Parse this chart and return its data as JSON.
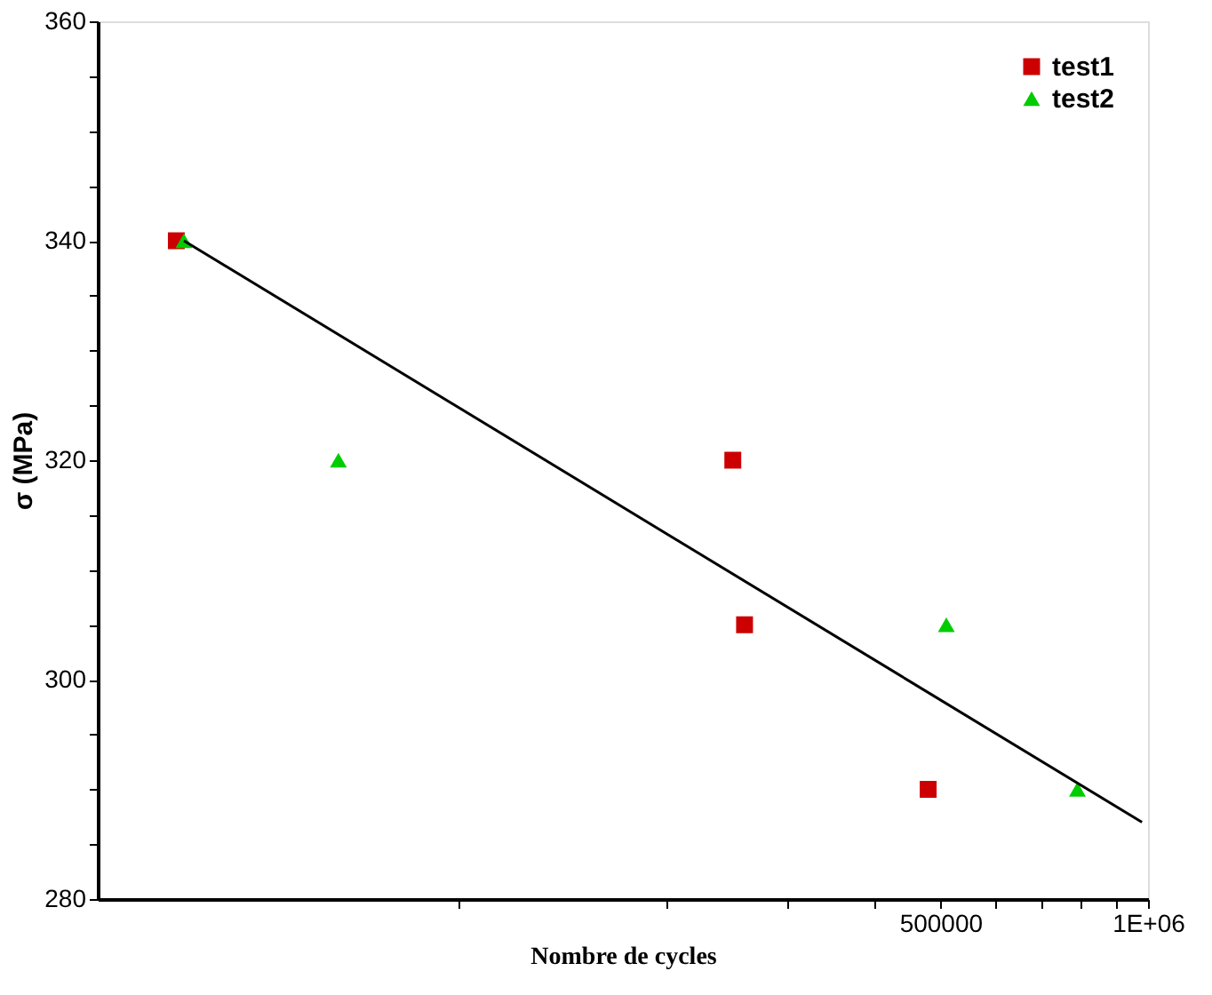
{
  "chart_data": {
    "type": "scatter",
    "xlabel": "Nombre de cycles",
    "ylabel": "σ (MPa)",
    "log": "x",
    "xlim": [
      30000,
      1000000
    ],
    "ylim": [
      280,
      360
    ],
    "xticks": [
      {
        "value": 100000,
        "label": null
      },
      {
        "value": 200000,
        "label": null
      },
      {
        "value": 300000,
        "label": null
      },
      {
        "value": 400000,
        "label": null
      },
      500000,
      {
        "value": 600000,
        "label": null
      },
      {
        "value": 700000,
        "label": null
      },
      {
        "value": 800000,
        "label": null
      },
      {
        "value": 900000,
        "label": null
      },
      {
        "value": 1000000,
        "label": "1E+06"
      }
    ],
    "yticks": [
      280,
      {
        "value": 285,
        "label": null
      },
      {
        "value": 290,
        "label": null
      },
      {
        "value": 295,
        "label": null
      },
      300,
      {
        "value": 305,
        "label": null
      },
      {
        "value": 310,
        "label": null
      },
      {
        "value": 315,
        "label": null
      },
      320,
      {
        "value": 325,
        "label": null
      },
      {
        "value": 330,
        "label": null
      },
      {
        "value": 335,
        "label": null
      },
      340,
      {
        "value": 345,
        "label": null
      },
      {
        "value": 350,
        "label": null
      },
      {
        "value": 355,
        "label": null
      },
      360
    ],
    "grid": false,
    "legend": "top right",
    "series": [
      {
        "name": "test1",
        "color": "#cc0000",
        "marker": "square",
        "x": [
          39000,
          250000,
          260000,
          480000
        ],
        "values": [
          340,
          320,
          305,
          290
        ]
      },
      {
        "name": "test2",
        "color": "#00cc00",
        "marker": "triangle",
        "x": [
          40000,
          67000,
          510000,
          790000
        ],
        "values": [
          340,
          320,
          305,
          290
        ]
      },
      {
        "type": "line",
        "color": "#000000",
        "marker": "none",
        "line_style": "solid",
        "x": [
          40000,
          980000
        ],
        "values": [
          340,
          287
        ]
      }
    ]
  }
}
